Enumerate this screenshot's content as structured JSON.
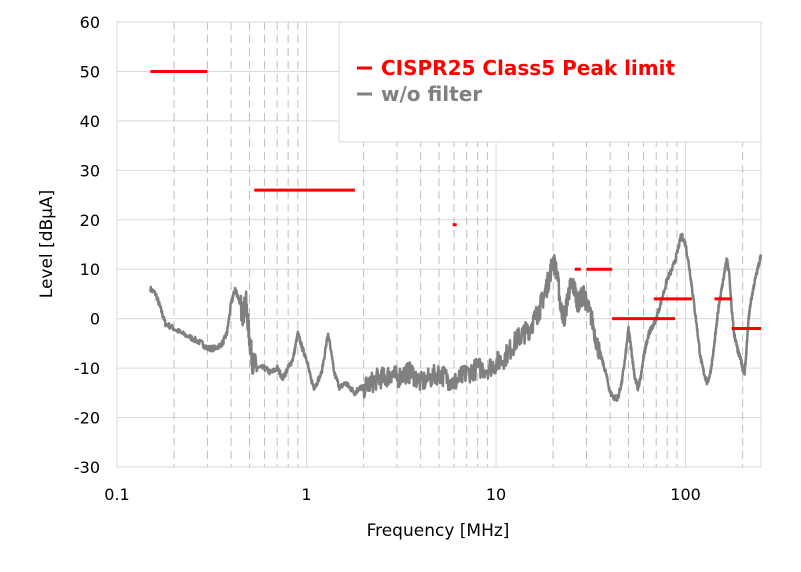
{
  "chart_data": {
    "type": "line",
    "x_scale": "log",
    "xlabel": "Frequency [MHz]",
    "ylabel": "Level [dBμA]",
    "xlim": [
      0.15,
      250
    ],
    "ylim": [
      -30,
      60
    ],
    "x_ticks": [
      0.1,
      1,
      10,
      100
    ],
    "x_tick_labels": [
      "0.1",
      "1",
      "10",
      "100"
    ],
    "y_ticks": [
      -30,
      -20,
      -10,
      0,
      10,
      20,
      30,
      40,
      50,
      60
    ],
    "y_tick_labels": [
      "-30",
      "-20",
      "-10",
      "0",
      "10",
      "20",
      "30",
      "40",
      "50",
      "60"
    ],
    "grid": true,
    "legend_position": "top-right",
    "series": [
      {
        "name": "CISPR25 Class5 Peak limit",
        "color": "#ff0000",
        "kind": "segments",
        "segments": [
          {
            "x": [
              0.15,
              0.3
            ],
            "y": [
              50,
              50
            ]
          },
          {
            "x": [
              0.53,
              1.8
            ],
            "y": [
              26,
              26
            ]
          },
          {
            "x": [
              5.9,
              6.2
            ],
            "y": [
              19,
              19
            ]
          },
          {
            "x": [
              26,
              28
            ],
            "y": [
              10,
              10
            ]
          },
          {
            "x": [
              30,
              41
            ],
            "y": [
              10,
              10
            ]
          },
          {
            "x": [
              41,
              88
            ],
            "y": [
              0,
              0
            ]
          },
          {
            "x": [
              68,
              108
            ],
            "y": [
              4,
              4
            ]
          },
          {
            "x": [
              142,
              175
            ],
            "y": [
              4,
              4
            ]
          },
          {
            "x": [
              175,
              250
            ],
            "y": [
              -2,
              -2
            ]
          }
        ]
      },
      {
        "name": "w/o filter",
        "color": "#808080",
        "kind": "line",
        "x": [
          0.15,
          0.16,
          0.17,
          0.18,
          0.2,
          0.22,
          0.25,
          0.28,
          0.3,
          0.33,
          0.36,
          0.38,
          0.4,
          0.42,
          0.44,
          0.46,
          0.48,
          0.5,
          0.52,
          0.55,
          0.6,
          0.65,
          0.7,
          0.75,
          0.8,
          0.85,
          0.9,
          0.95,
          1.0,
          1.05,
          1.1,
          1.2,
          1.3,
          1.4,
          1.5,
          1.6,
          1.7,
          1.8,
          1.9,
          2.0,
          2.2,
          2.4,
          2.6,
          2.8,
          3.0,
          3.3,
          3.6,
          4.0,
          4.5,
          5.0,
          5.5,
          6.0,
          6.5,
          7.0,
          8.0,
          9.0,
          10,
          11,
          12,
          13,
          14,
          15,
          16,
          17,
          18,
          19,
          20,
          21,
          22,
          23,
          24,
          25,
          26,
          27,
          28,
          29,
          30,
          32,
          34,
          36,
          38,
          40,
          42,
          44,
          46,
          48,
          50,
          52,
          54,
          56,
          58,
          60,
          62,
          64,
          66,
          70,
          75,
          80,
          85,
          90,
          95,
          100,
          105,
          110,
          115,
          120,
          125,
          130,
          135,
          140,
          145,
          150,
          155,
          160,
          165,
          170,
          175,
          180,
          185,
          190,
          195,
          200,
          205,
          210,
          215,
          220,
          230,
          240,
          250
        ],
        "y": [
          6,
          5,
          2,
          -1,
          -2,
          -3,
          -4,
          -5,
          -6,
          -6,
          -5,
          -3,
          3,
          6,
          4,
          1,
          3,
          -4,
          -9,
          -10,
          -10,
          -11,
          -10,
          -12,
          -10,
          -8,
          -3,
          -6,
          -8,
          -12,
          -14,
          -11,
          -3,
          -11,
          -14,
          -13,
          -14,
          -15,
          -14,
          -14,
          -13,
          -12,
          -12,
          -11,
          -12,
          -11,
          -11,
          -13,
          -12,
          -11,
          -12,
          -13,
          -12,
          -11,
          -10,
          -10,
          -9,
          -8,
          -6,
          -4,
          -3,
          -2,
          0,
          2,
          5,
          8,
          12,
          9,
          2,
          0,
          5,
          7,
          6,
          3,
          4,
          5,
          3,
          0,
          -5,
          -8,
          -11,
          -15,
          -16,
          -16,
          -13,
          -8,
          -2,
          -7,
          -12,
          -14,
          -12,
          -8,
          -5,
          -3,
          -2,
          0,
          4,
          8,
          10,
          13,
          17,
          15,
          10,
          4,
          -2,
          -8,
          -11,
          -13,
          -11,
          -7,
          -2,
          3,
          6,
          9,
          12,
          9,
          2,
          -3,
          -5,
          -7,
          -8,
          -10,
          -11,
          -6,
          0,
          3,
          7,
          10,
          13
        ]
      }
    ]
  }
}
